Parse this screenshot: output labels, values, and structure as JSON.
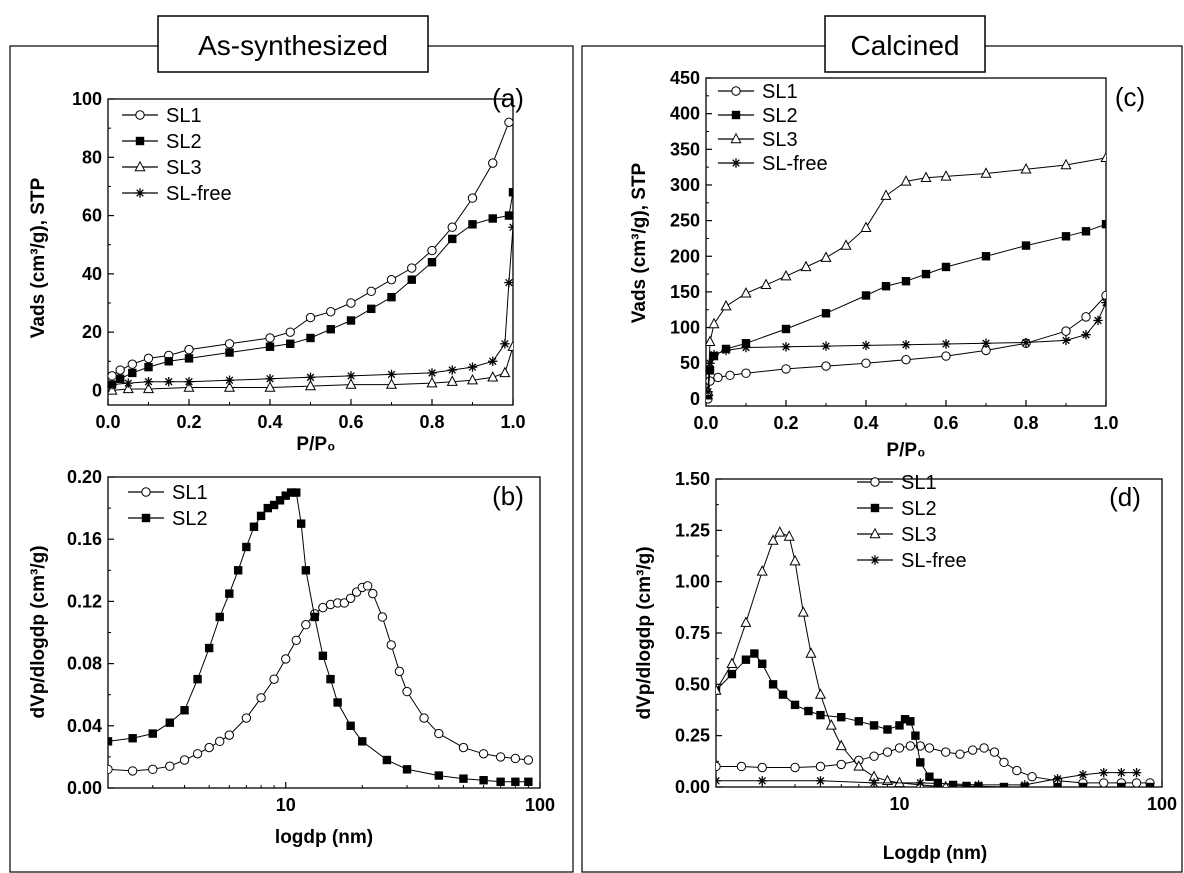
{
  "figure": {
    "left_title": "As-synthesized",
    "right_title": "Calcined"
  },
  "chart_data": [
    {
      "id": "a",
      "panel_label": "(a)",
      "type": "line",
      "xlabel": "P/P₀",
      "ylabel": "Vads (cm³/g), STP",
      "xlim": [
        0.0,
        1.0
      ],
      "ylim": [
        -5,
        100
      ],
      "xticks": [
        0.0,
        0.2,
        0.4,
        0.6,
        0.8,
        1.0
      ],
      "yticks": [
        0,
        20,
        40,
        60,
        80,
        100
      ],
      "xtick_decimals": 1,
      "ytick_decimals": 0,
      "legend_position": "top-left",
      "series": [
        {
          "name": "SL1",
          "marker": "circle",
          "x": [
            0.01,
            0.03,
            0.06,
            0.1,
            0.15,
            0.2,
            0.3,
            0.4,
            0.45,
            0.5,
            0.55,
            0.6,
            0.65,
            0.7,
            0.75,
            0.8,
            0.85,
            0.9,
            0.95,
            0.99
          ],
          "y": [
            5,
            7,
            9,
            11,
            12,
            14,
            16,
            18,
            20,
            25,
            27,
            30,
            34,
            38,
            42,
            48,
            56,
            66,
            78,
            92
          ]
        },
        {
          "name": "SL2",
          "marker": "square",
          "x": [
            0.01,
            0.03,
            0.06,
            0.1,
            0.15,
            0.2,
            0.3,
            0.4,
            0.45,
            0.5,
            0.55,
            0.6,
            0.65,
            0.7,
            0.75,
            0.8,
            0.85,
            0.9,
            0.95,
            0.99,
            1.0
          ],
          "y": [
            2,
            4,
            6,
            8,
            10,
            11,
            13,
            15,
            16,
            18,
            21,
            24,
            28,
            32,
            38,
            44,
            52,
            57,
            59,
            60,
            68
          ]
        },
        {
          "name": "SL3",
          "marker": "triangle",
          "x": [
            0.01,
            0.05,
            0.1,
            0.2,
            0.3,
            0.4,
            0.5,
            0.6,
            0.7,
            0.8,
            0.85,
            0.9,
            0.95,
            0.98,
            1.0
          ],
          "y": [
            0,
            0.5,
            0.5,
            1,
            1,
            1,
            1.5,
            2,
            2,
            2.5,
            3,
            3.5,
            4.5,
            6,
            15
          ]
        },
        {
          "name": "SL-free",
          "marker": "star",
          "x": [
            0.01,
            0.05,
            0.1,
            0.15,
            0.2,
            0.3,
            0.4,
            0.5,
            0.6,
            0.7,
            0.8,
            0.85,
            0.9,
            0.95,
            0.98,
            0.99,
            1.0
          ],
          "y": [
            2,
            2.5,
            3,
            3,
            3,
            3.5,
            4,
            4.5,
            5,
            5.5,
            6,
            7,
            8,
            10,
            16,
            37,
            56
          ]
        }
      ]
    },
    {
      "id": "b",
      "panel_label": "(b)",
      "type": "line",
      "xscale": "log",
      "xlabel": "logdp (nm)",
      "ylabel": "dVp/dlogdp (cm³/g)",
      "xlim": [
        2,
        100
      ],
      "ylim": [
        0,
        0.2
      ],
      "xticks": [
        10,
        100
      ],
      "yticks": [
        0.0,
        0.04,
        0.08,
        0.12,
        0.16,
        0.2
      ],
      "xtick_decimals": 0,
      "ytick_decimals": 2,
      "legend_position": "top-left",
      "series": [
        {
          "name": "SL1",
          "marker": "circle",
          "x": [
            2,
            2.5,
            3,
            3.5,
            4,
            4.5,
            5,
            5.5,
            6,
            7,
            8,
            9,
            10,
            11,
            12,
            13,
            14,
            15,
            16,
            17,
            18,
            19,
            20,
            21,
            22,
            24,
            26,
            28,
            30,
            35,
            40,
            50,
            60,
            70,
            80,
            90
          ],
          "y": [
            0.012,
            0.011,
            0.012,
            0.014,
            0.018,
            0.022,
            0.026,
            0.03,
            0.034,
            0.045,
            0.058,
            0.07,
            0.083,
            0.095,
            0.105,
            0.112,
            0.116,
            0.118,
            0.119,
            0.119,
            0.122,
            0.126,
            0.129,
            0.13,
            0.125,
            0.11,
            0.092,
            0.075,
            0.062,
            0.045,
            0.035,
            0.026,
            0.022,
            0.02,
            0.019,
            0.018
          ]
        },
        {
          "name": "SL2",
          "marker": "square",
          "x": [
            2,
            2.5,
            3,
            3.5,
            4,
            4.5,
            5,
            5.5,
            6,
            6.5,
            7,
            7.5,
            8,
            8.5,
            9,
            9.5,
            10,
            10.5,
            11,
            11.5,
            12,
            13,
            14,
            15,
            16,
            18,
            20,
            25,
            30,
            40,
            50,
            60,
            70,
            80,
            90
          ],
          "y": [
            0.03,
            0.032,
            0.035,
            0.042,
            0.05,
            0.07,
            0.09,
            0.11,
            0.125,
            0.14,
            0.155,
            0.168,
            0.175,
            0.18,
            0.182,
            0.185,
            0.188,
            0.19,
            0.19,
            0.17,
            0.14,
            0.11,
            0.085,
            0.07,
            0.055,
            0.04,
            0.03,
            0.018,
            0.012,
            0.008,
            0.006,
            0.005,
            0.004,
            0.004,
            0.004
          ]
        }
      ]
    },
    {
      "id": "c",
      "panel_label": "(c)",
      "type": "line",
      "xlabel": "P/P₀",
      "ylabel": "Vads (cm³/g), STP",
      "xlim": [
        0.0,
        1.0
      ],
      "ylim": [
        -10,
        450
      ],
      "xticks": [
        0.0,
        0.2,
        0.4,
        0.6,
        0.8,
        1.0
      ],
      "yticks": [
        0,
        50,
        100,
        150,
        200,
        250,
        300,
        350,
        400,
        450
      ],
      "xtick_decimals": 1,
      "ytick_decimals": 0,
      "legend_position": "top-left",
      "series": [
        {
          "name": "SL1",
          "marker": "circle",
          "x": [
            0.005,
            0.01,
            0.03,
            0.06,
            0.1,
            0.2,
            0.3,
            0.4,
            0.5,
            0.6,
            0.7,
            0.8,
            0.9,
            0.95,
            1.0
          ],
          "y": [
            0,
            25,
            30,
            33,
            36,
            42,
            46,
            50,
            55,
            60,
            68,
            78,
            95,
            115,
            145
          ]
        },
        {
          "name": "SL2",
          "marker": "square",
          "x": [
            0.005,
            0.01,
            0.02,
            0.05,
            0.1,
            0.2,
            0.3,
            0.4,
            0.45,
            0.5,
            0.55,
            0.6,
            0.7,
            0.8,
            0.9,
            0.95,
            1.0
          ],
          "y": [
            5,
            40,
            60,
            70,
            78,
            98,
            120,
            145,
            158,
            165,
            175,
            185,
            200,
            215,
            228,
            235,
            245
          ]
        },
        {
          "name": "SL3",
          "marker": "triangle",
          "x": [
            0.005,
            0.01,
            0.02,
            0.05,
            0.1,
            0.15,
            0.2,
            0.25,
            0.3,
            0.35,
            0.4,
            0.45,
            0.5,
            0.55,
            0.6,
            0.7,
            0.8,
            0.9,
            1.0
          ],
          "y": [
            10,
            80,
            105,
            130,
            148,
            160,
            172,
            185,
            198,
            215,
            240,
            285,
            305,
            310,
            312,
            316,
            322,
            328,
            338
          ]
        },
        {
          "name": "SL-free",
          "marker": "star",
          "x": [
            0.005,
            0.01,
            0.02,
            0.05,
            0.1,
            0.2,
            0.3,
            0.4,
            0.5,
            0.6,
            0.7,
            0.8,
            0.9,
            0.95,
            0.98,
            1.0
          ],
          "y": [
            10,
            50,
            62,
            68,
            72,
            73,
            74,
            75,
            76,
            77,
            78,
            79,
            82,
            90,
            110,
            135
          ]
        }
      ]
    },
    {
      "id": "d",
      "panel_label": "(d)",
      "type": "line",
      "xscale": "log",
      "xlabel": "Logdp (nm)",
      "ylabel": "dVp/dlogdp (cm³/g)",
      "xlim": [
        2,
        100
      ],
      "ylim": [
        0,
        1.5
      ],
      "xticks": [
        10,
        100
      ],
      "yticks": [
        0.0,
        0.25,
        0.5,
        0.75,
        1.0,
        1.25,
        1.5
      ],
      "xtick_decimals": 0,
      "ytick_decimals": 2,
      "legend_position": "top-right",
      "series": [
        {
          "name": "SL1",
          "marker": "circle",
          "x": [
            2,
            2.5,
            3,
            4,
            5,
            6,
            7,
            8,
            9,
            10,
            11,
            12,
            13,
            15,
            17,
            19,
            21,
            23,
            25,
            28,
            32,
            40,
            50,
            60,
            70,
            80,
            90
          ],
          "y": [
            0.1,
            0.1,
            0.095,
            0.095,
            0.1,
            0.11,
            0.13,
            0.15,
            0.17,
            0.19,
            0.2,
            0.2,
            0.19,
            0.17,
            0.16,
            0.18,
            0.19,
            0.17,
            0.12,
            0.08,
            0.05,
            0.03,
            0.02,
            0.02,
            0.02,
            0.02,
            0.02
          ]
        },
        {
          "name": "SL2",
          "marker": "square",
          "x": [
            2,
            2.3,
            2.6,
            2.8,
            3,
            3.3,
            3.6,
            4,
            4.5,
            5,
            6,
            7,
            8,
            9,
            10,
            10.5,
            11,
            11.5,
            12,
            13,
            14,
            16,
            18,
            20,
            25,
            30,
            40,
            50,
            70,
            90
          ],
          "y": [
            0.47,
            0.55,
            0.62,
            0.65,
            0.6,
            0.5,
            0.45,
            0.4,
            0.37,
            0.35,
            0.34,
            0.32,
            0.3,
            0.28,
            0.3,
            0.33,
            0.32,
            0.25,
            0.12,
            0.05,
            0.02,
            0.01,
            0.005,
            0.003,
            0,
            0,
            0,
            0,
            0,
            0
          ]
        },
        {
          "name": "SL3",
          "marker": "triangle",
          "x": [
            2,
            2.3,
            2.6,
            3,
            3.3,
            3.5,
            3.8,
            4,
            4.3,
            4.6,
            5,
            5.5,
            6,
            7,
            8,
            9,
            10,
            12,
            15
          ],
          "y": [
            0.47,
            0.6,
            0.8,
            1.05,
            1.2,
            1.24,
            1.22,
            1.1,
            0.85,
            0.65,
            0.45,
            0.3,
            0.2,
            0.1,
            0.05,
            0.03,
            0.02,
            0.01,
            0
          ]
        },
        {
          "name": "SL-free",
          "marker": "star",
          "x": [
            2,
            3,
            5,
            8,
            12,
            20,
            30,
            40,
            50,
            60,
            70,
            80
          ],
          "y": [
            0.03,
            0.03,
            0.03,
            0.02,
            0.02,
            0.01,
            0.01,
            0.04,
            0.06,
            0.07,
            0.07,
            0.07
          ]
        }
      ]
    }
  ]
}
